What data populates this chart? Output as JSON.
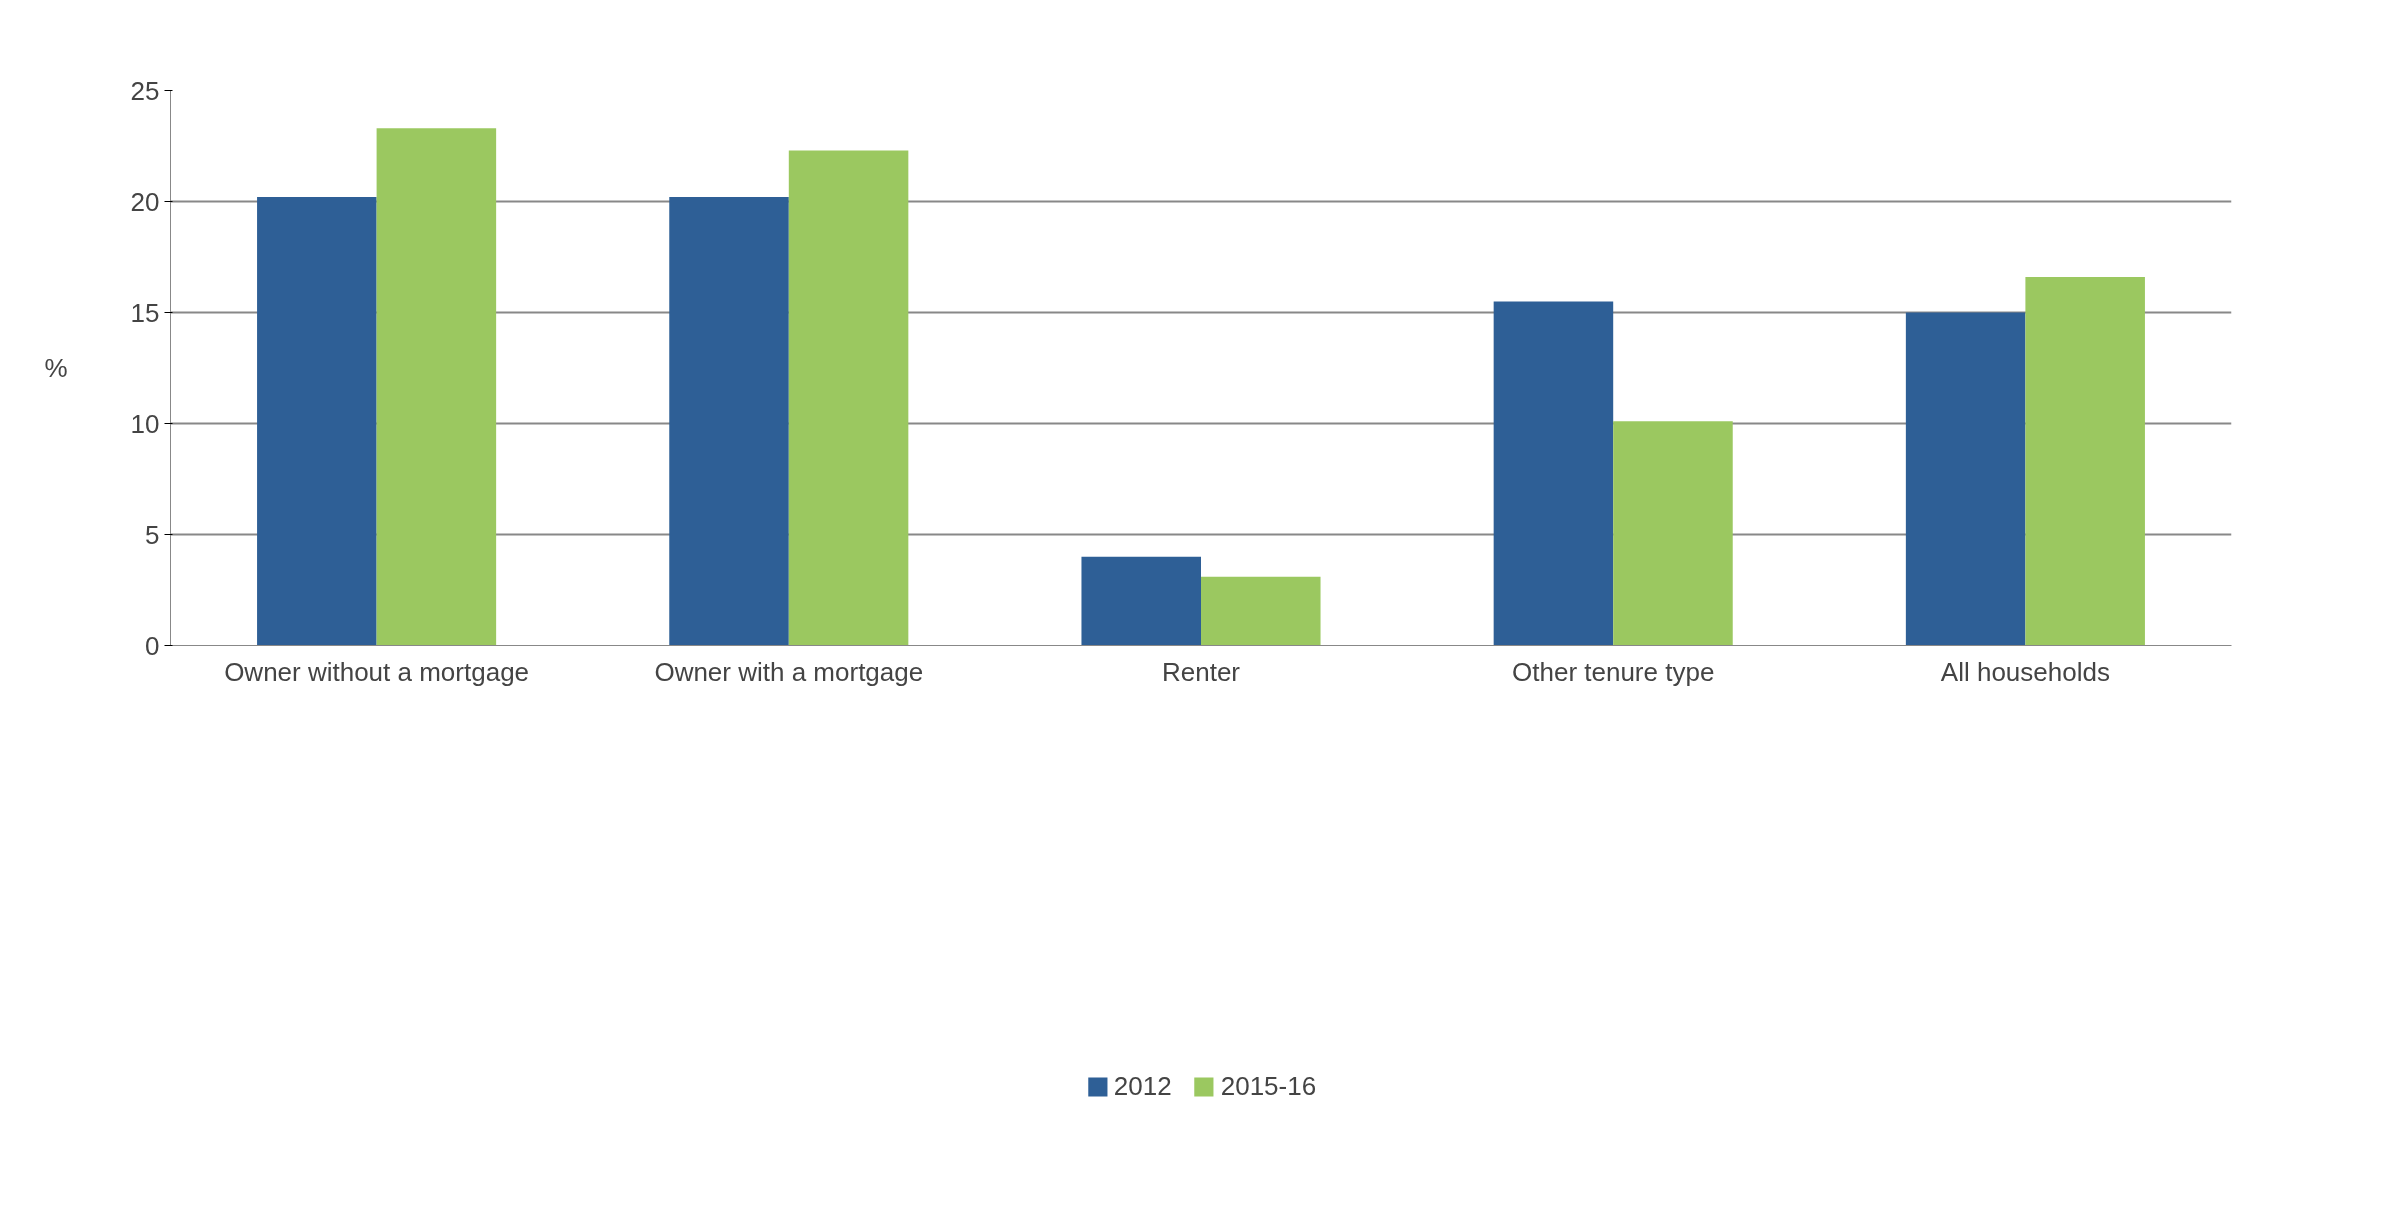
{
  "chart_data": {
    "type": "bar",
    "ylabel": "%",
    "categories": [
      "Owner without a mortgage",
      "Owner with a mortgage",
      "Renter",
      "Other tenure type",
      "All households"
    ],
    "series": [
      {
        "name": "2012",
        "color": "#2e5f96",
        "values": [
          20.2,
          20.2,
          4.0,
          15.5,
          15.0
        ]
      },
      {
        "name": "2015-16",
        "color": "#9bc860",
        "values": [
          23.3,
          22.3,
          3.1,
          10.1,
          16.6
        ]
      }
    ],
    "ylim": [
      0,
      25
    ],
    "yticks": [
      0,
      5,
      10,
      15,
      20,
      25
    ],
    "grid": "y",
    "legend": "bottom"
  }
}
